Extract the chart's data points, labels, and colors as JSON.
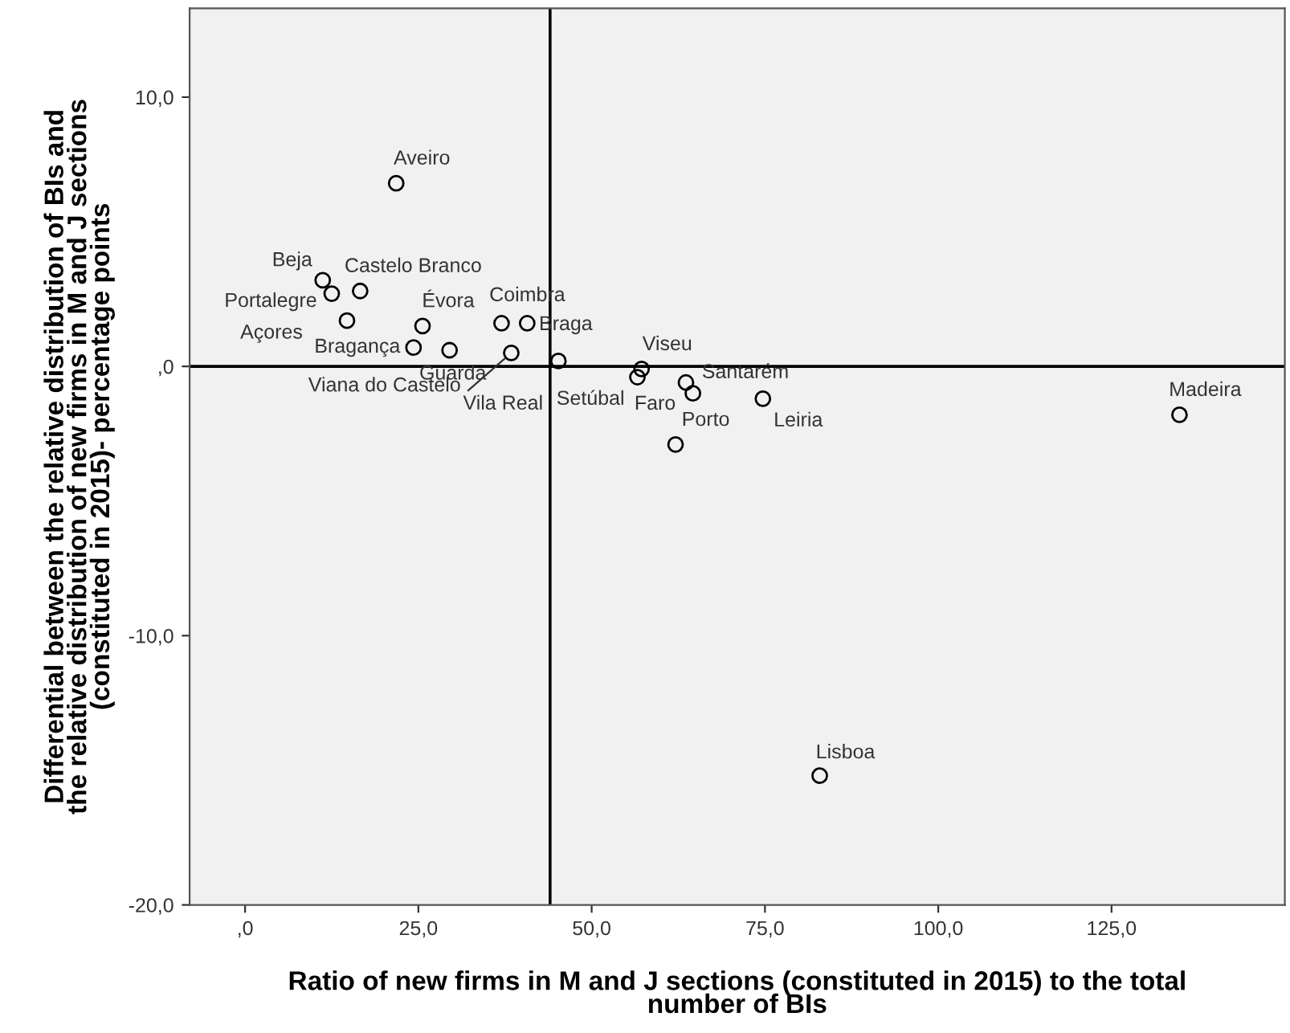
{
  "chart_data": {
    "type": "scatter",
    "xlabel": "Ratio of new firms in M and J sections (constituted in 2015) to the total\nnumber of BIs",
    "ylabel": "Differential between the relative distribution of BIs and\nthe relative distribution of new firms in M and J sections\n(constituted in 2015)- percentage points",
    "series": [
      {
        "color": "#000000",
        "x": [
          21.8,
          11.2,
          12.5,
          16.6,
          14.7,
          25.6,
          24.3,
          29.5,
          37.0,
          40.7,
          38.4,
          45.2,
          57.2,
          56.6,
          63.6,
          64.6,
          74.7,
          62.1,
          134.8,
          82.9
        ],
        "values": [
          6.8,
          3.2,
          2.7,
          2.8,
          1.7,
          1.5,
          0.7,
          0.6,
          1.6,
          1.6,
          0.5,
          0.2,
          -0.1,
          -0.4,
          -0.6,
          -1.0,
          -1.2,
          -2.9,
          -1.8,
          -15.2
        ]
      }
    ],
    "annotations": [
      {
        "text": "Aveiro",
        "x": 21.8,
        "y": 6.8
      },
      {
        "text": "Beja",
        "x": 11.2,
        "y": 3.2
      },
      {
        "text": "Castelo Branco",
        "x": 16.6,
        "y": 2.8
      },
      {
        "text": "Portalegre",
        "x": 12.5,
        "y": 2.7
      },
      {
        "text": "Açores",
        "x": 14.7,
        "y": 1.7
      },
      {
        "text": "Évora",
        "x": 25.6,
        "y": 1.5
      },
      {
        "text": "Coimbra",
        "x": 37.0,
        "y": 1.6
      },
      {
        "text": "Braga",
        "x": 40.7,
        "y": 1.6
      },
      {
        "text": "Bragança",
        "x": 24.3,
        "y": 0.7
      },
      {
        "text": "Guarda",
        "x": 29.5,
        "y": 0.6
      },
      "Viana do Castelo",
      {
        "text": "Vila Real",
        "x": 38.4,
        "y": 0.5
      },
      {
        "text": "Setúbal",
        "x": 45.2,
        "y": 0.2
      },
      {
        "text": "Viseu",
        "x": 57.2,
        "y": -0.1
      },
      {
        "text": "Faro",
        "x": 56.6,
        "y": -0.4
      },
      {
        "text": "Santarém",
        "x": 63.6,
        "y": -0.6
      },
      {
        "text": "Porto",
        "x": 64.6,
        "y": -1.0
      },
      {
        "text": "Leiria",
        "x": 74.7,
        "y": -1.2
      },
      {
        "text": "Madeira",
        "x": 134.8,
        "y": -1.8
      },
      {
        "text": "Lisboa",
        "x": 82.9,
        "y": -15.2
      }
    ],
    "xlim": [
      -8,
      150
    ],
    "ylim": [
      -20,
      13.3
    ],
    "xticks": [
      {
        "value": 0,
        "label": ",0"
      },
      {
        "value": 25,
        "label": "25,0"
      },
      {
        "value": 50,
        "label": "50,0"
      },
      {
        "value": 75,
        "label": "75,0"
      },
      {
        "value": 100,
        "label": "100,0"
      },
      {
        "value": 125,
        "label": "125,0"
      }
    ],
    "yticks": [
      {
        "value": -20,
        "label": "-20,0"
      },
      {
        "value": -10,
        "label": "-10,0"
      },
      {
        "value": 0,
        "label": ",0"
      },
      {
        "value": 10,
        "label": "10,0"
      }
    ],
    "ref_lines": [
      {
        "axis": "x",
        "value": 44.0,
        "color": "#000000"
      },
      {
        "axis": "y",
        "value": 0,
        "color": "#000000"
      }
    ],
    "marker": "circle",
    "grid": false,
    "legend": false
  }
}
